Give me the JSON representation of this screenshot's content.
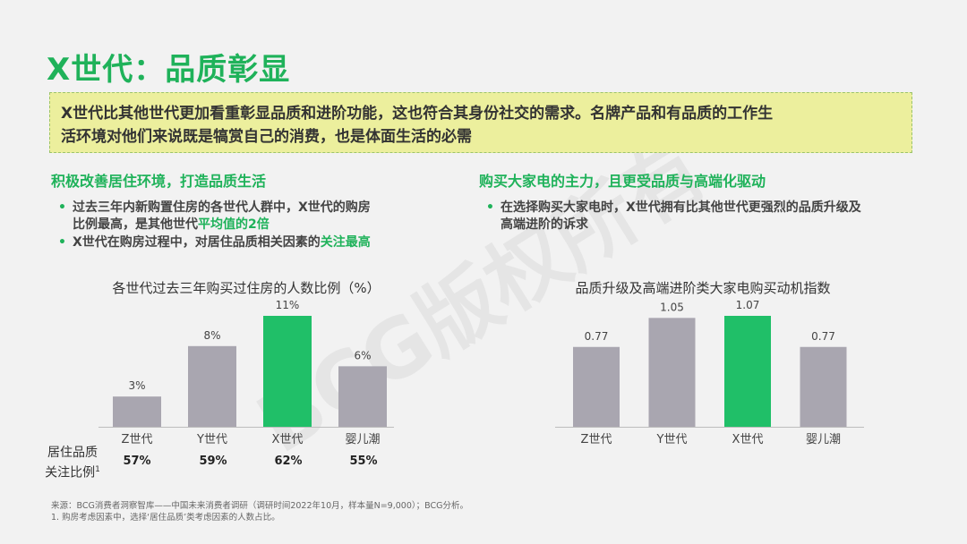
{
  "title": "X世代：品质彰显",
  "callout": {
    "line1": "X世代比其他世代更加看重彰显品质和进阶功能，这也符合其身份社交的需求。名牌产品和有品质的工作生",
    "line2": "活环境对他们来说既是犒赏自己的消费，也是体面生活的必需"
  },
  "left": {
    "heading": "积极改善居住环境，打造品质生活",
    "b1_line1": "过去三年内新购置住房的各世代人群中，X世代的购房",
    "b1_line2a": "比例最高，是其他世代",
    "b1_line2b": "平均值的2倍",
    "b2a": "X世代在购房过程中，对居住品质相关因素的",
    "b2b": "关注最高"
  },
  "right": {
    "heading": "购买大家电的主力，且更受品质与高端化驱动",
    "b1_line1": "在选择购买大家电时，X世代拥有比其他世代更强烈的品质升级及",
    "b1_line2": "高端进阶的诉求"
  },
  "watermark": "BCG版权所有",
  "row": {
    "label_line1": "居住品质",
    "label_line2": "关注比例",
    "label_sup": "1",
    "values": [
      "57%",
      "59%",
      "62%",
      "55%"
    ]
  },
  "footnotes": {
    "source": "来源：BCG消费者洞察智库——中国未来消费者调研（调研时间2022年10月，样本量N=9,000）；BCG分析。",
    "note1": "1. 购房考虑因素中，选择‘居住品质’类考虑因素的人数占比。"
  },
  "colors": {
    "gray": "#a9a6b0",
    "highlight": "#20bf68",
    "accent": "#1fb25a"
  },
  "chart_data": [
    {
      "type": "bar",
      "title": "各世代过去三年购买过住房的人数比例（%）",
      "categories": [
        "Z世代",
        "Y世代",
        "X世代",
        "婴儿潮"
      ],
      "values": [
        3,
        8,
        11,
        6
      ],
      "labels": [
        "3%",
        "8%",
        "11%",
        "6%"
      ],
      "highlight_index": 2,
      "ylim": [
        0,
        11
      ]
    },
    {
      "type": "bar",
      "title": "品质升级及高端进阶类大家电购买动机指数",
      "categories": [
        "Z世代",
        "Y世代",
        "X世代",
        "婴儿潮"
      ],
      "values": [
        0.77,
        1.05,
        1.07,
        0.77
      ],
      "labels": [
        "0.77",
        "1.05",
        "1.07",
        "0.77"
      ],
      "highlight_index": 2,
      "ylim": [
        0,
        1.07
      ]
    }
  ]
}
